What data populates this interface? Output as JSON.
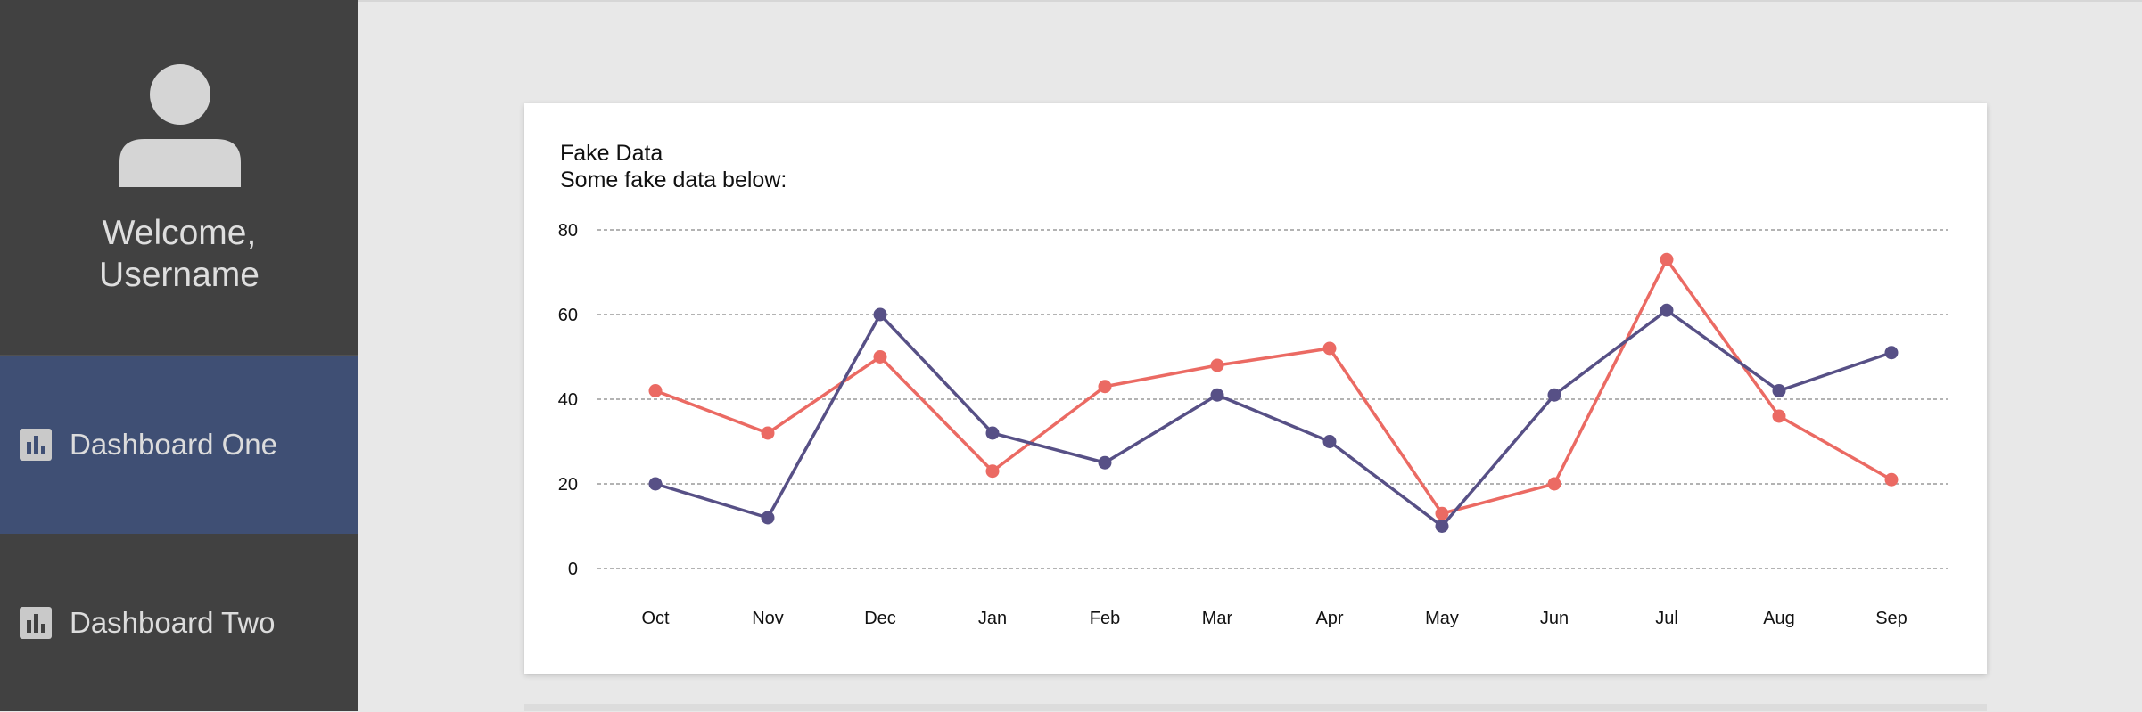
{
  "sidebar": {
    "welcome_line1": "Welcome,",
    "welcome_line2": "Username",
    "avatar_icon": "user-avatar-icon",
    "items": [
      {
        "label": "Dashboard One",
        "icon": "bar-chart-icon",
        "active": true
      },
      {
        "label": "Dashboard Two",
        "icon": "bar-chart-icon",
        "active": false
      }
    ]
  },
  "card": {
    "title": "Fake Data",
    "subtitle": "Some fake data below:"
  },
  "chart_data": {
    "type": "line",
    "categories": [
      "Oct",
      "Nov",
      "Dec",
      "Jan",
      "Feb",
      "Mar",
      "Apr",
      "May",
      "Jun",
      "Jul",
      "Aug",
      "Sep"
    ],
    "series": [
      {
        "color": "#eb6a63",
        "values": [
          42,
          32,
          50,
          23,
          43,
          48,
          52,
          13,
          20,
          73,
          36,
          21
        ]
      },
      {
        "color": "#575086",
        "values": [
          20,
          12,
          60,
          32,
          25,
          41,
          30,
          10,
          41,
          61,
          42,
          51
        ]
      }
    ],
    "yticks": [
      0,
      20,
      40,
      60,
      80
    ],
    "ylim": [
      0,
      80
    ],
    "grid": true,
    "grid_style": "dashed"
  },
  "colors": {
    "sidebar_bg": "#414141",
    "active_item_bg": "#3f4f74",
    "page_bg": "#e8e8e8"
  }
}
